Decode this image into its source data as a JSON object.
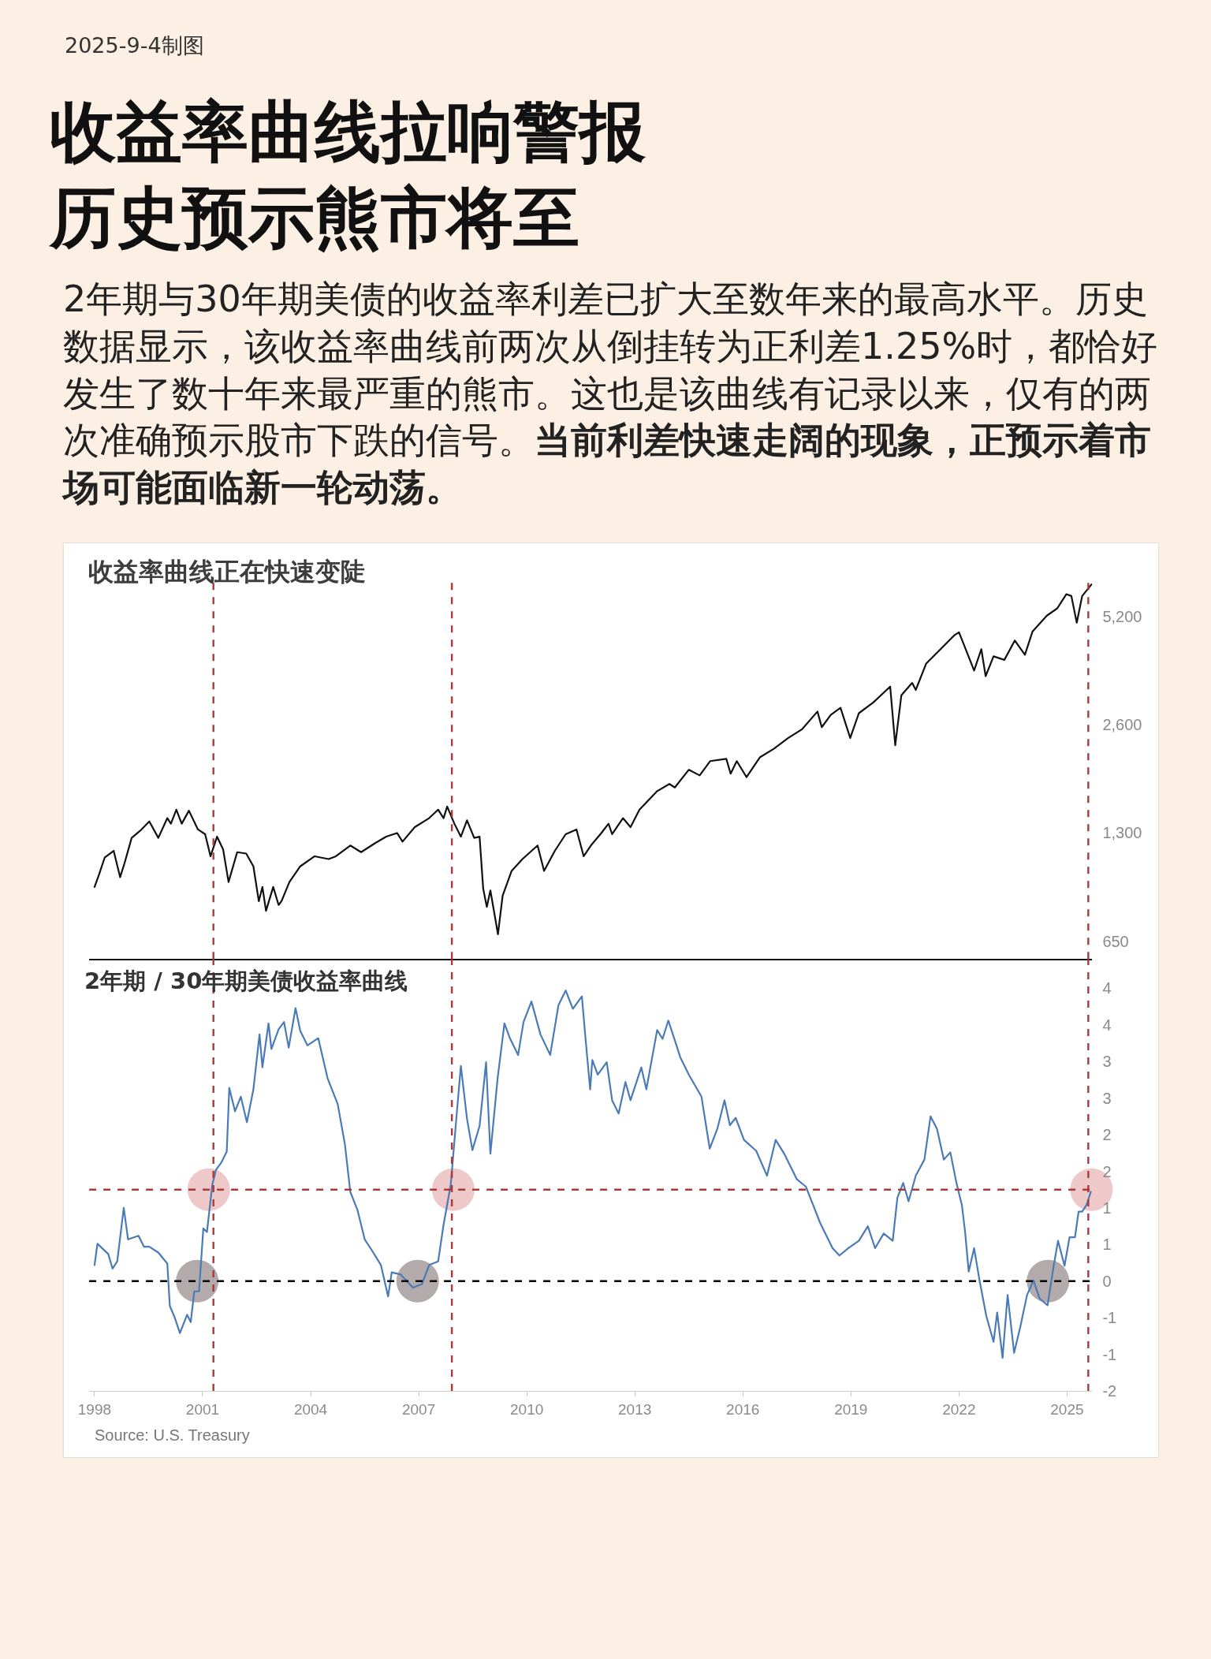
{
  "chart_data": [
    {
      "type": "line",
      "title": "收益率曲线拉响警报历史预示熊市将至",
      "subtitle": "2年期与30年期美债的收益率利差已扩大至数年来的最高水平。历史数据显示，该收益率曲线前两次从倒挂转为正利差1.25%时，都恰好发生了数十年来最严重的熊市。这也是该曲线有记录以来，仅有的两次准确预示股市下跌的信号。",
      "annotations": [
        "当前利差快速走阔的现象，正预示着市场可能面临新一轮动荡。",
        "2025-9-4制图",
        "收益率曲线正在快速变陡"
      ],
      "x": [
        1998.0,
        1998.13,
        1998.28,
        1998.53,
        1998.71,
        1998.83,
        1999.03,
        1999.27,
        1999.52,
        1999.77,
        2000.02,
        2000.12,
        2000.27,
        2000.42,
        2000.62,
        2000.87,
        2001.07,
        2001.22,
        2001.4,
        2001.57,
        2001.72,
        2001.96,
        2002.21,
        2002.41,
        2002.56,
        2002.66,
        2002.76,
        2002.96,
        2003.11,
        2003.19,
        2003.41,
        2003.71,
        2004.11,
        2004.5,
        2004.7,
        2005.1,
        2005.4,
        2005.8,
        2006.1,
        2006.4,
        2006.55,
        2006.89,
        2007.29,
        2007.54,
        2007.69,
        2007.79,
        2007.99,
        2008.17,
        2008.34,
        2008.54,
        2008.69,
        2008.79,
        2008.89,
        2008.99,
        2009.2,
        2009.33,
        2009.58,
        2009.88,
        2010.3,
        2010.48,
        2010.78,
        2011.08,
        2011.38,
        2011.58,
        2011.78,
        2012.07,
        2012.27,
        2012.37,
        2012.67,
        2012.88,
        2013.13,
        2013.62,
        2013.96,
        2014.11,
        2014.5,
        2014.8,
        2015.09,
        2015.54,
        2015.66,
        2015.83,
        2016.1,
        2016.47,
        2016.86,
        2017.26,
        2017.65,
        2018.07,
        2018.19,
        2018.44,
        2018.71,
        2018.98,
        2019.22,
        2019.62,
        2020.09,
        2020.23,
        2020.4,
        2020.7,
        2020.8,
        2021.09,
        2021.49,
        2021.88,
        2022.0,
        2022.42,
        2022.62,
        2022.74,
        2022.96,
        2023.26,
        2023.55,
        2023.83,
        2024.04,
        2024.44,
        2024.73,
        2024.98,
        2025.12,
        2025.27,
        2025.42,
        2025.68
      ],
      "series": [
        {
          "color": "#111111",
          "values": [
            920,
            1000,
            1110,
            1160,
            980,
            1070,
            1260,
            1320,
            1400,
            1260,
            1430,
            1380,
            1510,
            1380,
            1500,
            1330,
            1290,
            1120,
            1270,
            1170,
            950,
            1150,
            1140,
            1050,
            840,
            920,
            790,
            920,
            820,
            840,
            950,
            1050,
            1120,
            1100,
            1120,
            1200,
            1150,
            1220,
            1270,
            1300,
            1230,
            1350,
            1430,
            1510,
            1430,
            1540,
            1380,
            1270,
            1410,
            1260,
            1270,
            910,
            810,
            900,
            680,
            870,
            1020,
            1100,
            1200,
            1020,
            1160,
            1290,
            1330,
            1120,
            1200,
            1300,
            1380,
            1290,
            1430,
            1350,
            1510,
            1700,
            1780,
            1740,
            1950,
            1880,
            2060,
            2090,
            1900,
            2060,
            1860,
            2110,
            2230,
            2390,
            2530,
            2830,
            2560,
            2770,
            2900,
            2390,
            2800,
            3000,
            3320,
            2280,
            3140,
            3400,
            3250,
            3850,
            4220,
            4620,
            4700,
            3680,
            4220,
            3550,
            4030,
            3940,
            4460,
            4070,
            4720,
            5230,
            5480,
            6000,
            5930,
            5000,
            5930,
            6390
          ]
        }
      ],
      "xlim": [
        1997.85,
        2025.7
      ],
      "ylim": [
        580,
        6700
      ],
      "yticks": [
        650,
        {
          "value": 1300,
          "label": "1,300"
        },
        {
          "value": 2600,
          "label": "2,600"
        },
        {
          "value": 5200,
          "label": "5,200"
        }
      ],
      "log": "y",
      "tick_labels": "y",
      "ref_lines": [
        {
          "axis": "x",
          "value": 2001.3,
          "color": "#a83a3a",
          "line_style": "dashed"
        },
        {
          "axis": "x",
          "value": 2007.92,
          "color": "#a83a3a",
          "line_style": "dashed"
        },
        {
          "axis": "x",
          "value": 2025.59,
          "color": "#a83a3a",
          "line_style": "dashed"
        }
      ]
    },
    {
      "type": "line",
      "title": "2年期 / 30年期美债收益率曲线",
      "annotations": [
        "Source: U.S. Treasury"
      ],
      "x": [
        1998.0,
        1998.08,
        1998.38,
        1998.5,
        1998.63,
        1998.81,
        1998.93,
        1999.22,
        1999.37,
        1999.52,
        1999.77,
        2000.02,
        2000.09,
        2000.22,
        2000.37,
        2000.57,
        2000.67,
        2000.77,
        2000.9,
        2001.02,
        2001.12,
        2001.27,
        2001.37,
        2001.52,
        2001.67,
        2001.74,
        2001.9,
        2002.06,
        2002.23,
        2002.41,
        2002.58,
        2002.66,
        2002.83,
        2002.91,
        2003.11,
        2003.26,
        2003.39,
        2003.58,
        2003.71,
        2003.91,
        2004.21,
        2004.47,
        2004.75,
        2004.95,
        2005.1,
        2005.3,
        2005.5,
        2005.7,
        2005.95,
        2006.15,
        2006.25,
        2006.5,
        2006.84,
        2007.09,
        2007.29,
        2007.54,
        2007.69,
        2007.89,
        2008.07,
        2008.17,
        2008.34,
        2008.49,
        2008.69,
        2008.87,
        2008.99,
        2009.19,
        2009.38,
        2009.53,
        2009.76,
        2009.91,
        2010.13,
        2010.38,
        2010.65,
        2010.88,
        2011.08,
        2011.28,
        2011.53,
        2011.63,
        2011.76,
        2011.82,
        2011.97,
        2012.22,
        2012.37,
        2012.55,
        2012.74,
        2012.88,
        2013.18,
        2013.32,
        2013.62,
        2013.77,
        2013.93,
        2014.11,
        2014.26,
        2014.5,
        2014.85,
        2015.08,
        2015.29,
        2015.49,
        2015.64,
        2015.8,
        2016.03,
        2016.37,
        2016.67,
        2016.91,
        2017.16,
        2017.5,
        2017.75,
        2017.95,
        2018.14,
        2018.49,
        2018.68,
        2018.93,
        2019.22,
        2019.47,
        2019.67,
        2019.91,
        2020.16,
        2020.29,
        2020.45,
        2020.6,
        2020.8,
        2021.04,
        2021.21,
        2021.39,
        2021.58,
        2021.76,
        2021.93,
        2022.08,
        2022.17,
        2022.27,
        2022.42,
        2022.57,
        2022.76,
        2022.96,
        2023.06,
        2023.21,
        2023.35,
        2023.53,
        2023.7,
        2023.89,
        2024.07,
        2024.24,
        2024.46,
        2024.63,
        2024.75,
        2024.93,
        2025.07,
        2025.22,
        2025.32,
        2025.42,
        2025.54,
        2025.66
      ],
      "series": [
        {
          "type": "scatter",
          "marker": "circle",
          "color": "#efc9c9",
          "x": [
            2001.17,
            2007.96,
            2025.68
          ],
          "values": [
            1.25,
            1.25,
            1.25
          ]
        },
        {
          "type": "scatter",
          "marker": "circle",
          "color": "#b3abab",
          "x": [
            2000.85,
            2006.97,
            2024.47
          ],
          "values": [
            0,
            0,
            0
          ]
        },
        {
          "color": "#4a7bb7",
          "values": [
            0.22,
            0.51,
            0.37,
            0.17,
            0.27,
            1.0,
            0.57,
            0.62,
            0.47,
            0.47,
            0.39,
            0.24,
            -0.34,
            -0.49,
            -0.71,
            -0.46,
            -0.56,
            -0.14,
            -0.14,
            0.72,
            0.67,
            1.32,
            1.52,
            1.62,
            1.77,
            2.64,
            2.32,
            2.52,
            2.17,
            2.62,
            3.37,
            2.92,
            3.52,
            3.17,
            3.44,
            3.54,
            3.19,
            3.73,
            3.42,
            3.22,
            3.32,
            2.77,
            2.42,
            1.87,
            1.22,
            0.97,
            0.57,
            0.42,
            0.22,
            -0.21,
            0.12,
            0.09,
            -0.09,
            -0.04,
            0.22,
            0.27,
            0.77,
            1.32,
            2.37,
            2.94,
            2.22,
            1.79,
            2.12,
            2.99,
            1.74,
            2.77,
            3.52,
            3.32,
            3.09,
            3.54,
            3.82,
            3.37,
            3.09,
            3.77,
            3.97,
            3.72,
            3.89,
            3.32,
            2.62,
            3.02,
            2.82,
            2.99,
            2.47,
            2.29,
            2.72,
            2.47,
            2.92,
            2.62,
            3.43,
            3.31,
            3.56,
            3.29,
            3.06,
            2.82,
            2.52,
            1.81,
            2.08,
            2.47,
            2.13,
            2.23,
            1.93,
            1.78,
            1.44,
            1.93,
            1.73,
            1.39,
            1.29,
            1.04,
            0.8,
            0.45,
            0.35,
            0.45,
            0.55,
            0.75,
            0.45,
            0.65,
            0.55,
            1.14,
            1.34,
            1.09,
            1.44,
            1.66,
            2.25,
            2.08,
            1.66,
            1.76,
            1.34,
            1.04,
            0.67,
            0.13,
            0.45,
            0.01,
            -0.48,
            -0.83,
            -0.43,
            -1.05,
            -0.19,
            -0.98,
            -0.63,
            -0.19,
            0.01,
            -0.24,
            -0.33,
            0.21,
            0.55,
            0.21,
            0.6,
            0.6,
            0.95,
            0.95,
            1.04,
            1.22
          ]
        }
      ],
      "xlim": [
        1997.85,
        2025.7
      ],
      "xticks": [
        1998,
        2001,
        2004,
        2007,
        2010,
        2013,
        2016,
        2019,
        2022,
        2025
      ],
      "ylim": [
        -1.5,
        4.4
      ],
      "yticks": [
        4,
        {
          "value": 3.5,
          "label": "4"
        },
        3,
        {
          "value": 2.5,
          "label": "3"
        },
        2,
        {
          "value": 1.5,
          "label": "2"
        },
        1,
        {
          "value": 0.5,
          "label": "1"
        },
        0,
        {
          "value": -0.5,
          "label": "-1"
        },
        -1,
        {
          "value": -1.5,
          "label": "-2"
        }
      ],
      "ref_lines": [
        {
          "axis": "y",
          "value": 1.25,
          "color": "#a83a3a",
          "line_style": "dashed"
        },
        {
          "axis": "y",
          "value": 0,
          "color": "#000000",
          "line_style": "dashed"
        },
        {
          "axis": "x",
          "value": 2001.3,
          "color": "#a83a3a",
          "line_style": "dashed"
        },
        {
          "axis": "x",
          "value": 2007.92,
          "color": "#a83a3a",
          "line_style": "dashed"
        },
        {
          "axis": "x",
          "value": 2025.59,
          "color": "#a83a3a",
          "line_style": "dashed"
        }
      ]
    }
  ]
}
